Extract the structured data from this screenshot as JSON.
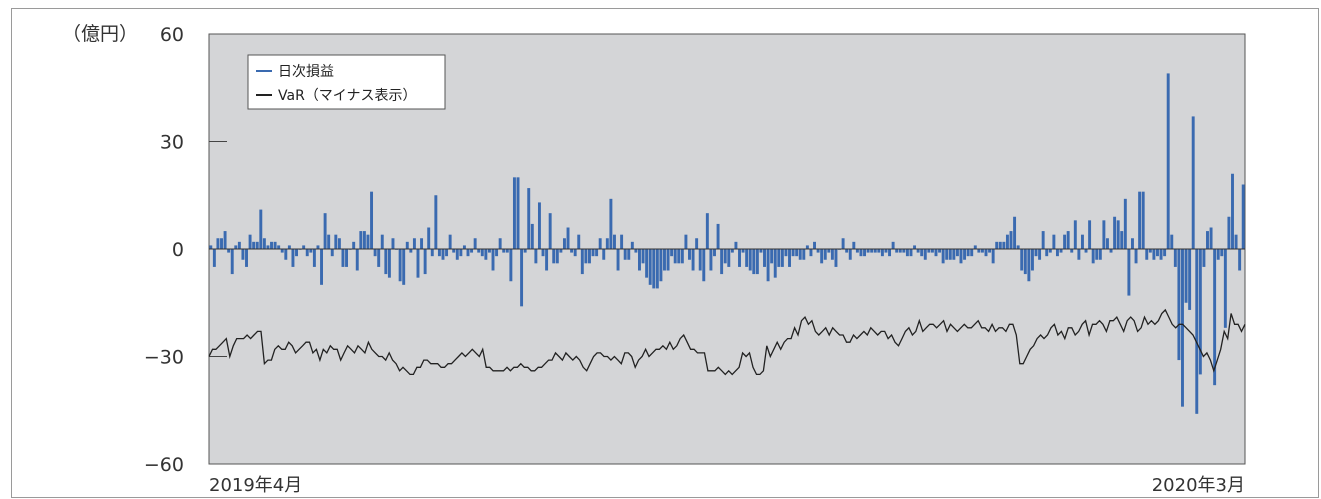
{
  "chart_data": {
    "type": "bar+line",
    "unit_label": "（億円）",
    "ylim": [
      -60,
      60
    ],
    "yticks": [
      60,
      30,
      0,
      -30,
      -60
    ],
    "ytick_labels": [
      "60",
      "30",
      "0",
      "−30",
      "−60"
    ],
    "x_start_label": "2019年4月",
    "x_end_label": "2020年3月",
    "colors": {
      "bar": "#3a6ab0",
      "line": "#222222",
      "plot_bg": "#d4d5d7"
    },
    "legend": {
      "position": "top-left",
      "entries": [
        "日次損益",
        "VaR（マイナス表示）"
      ]
    },
    "series": [
      {
        "name": "日次損益",
        "kind": "bar",
        "values": [
          1,
          -5,
          3,
          3,
          5,
          -1,
          -7,
          1,
          2,
          -3,
          -5,
          4,
          2,
          2,
          11,
          3,
          1,
          2,
          2,
          1,
          -1,
          -3,
          1,
          -5,
          -2,
          0,
          1,
          -2,
          -1,
          -5,
          1,
          -10,
          10,
          4,
          -2,
          4,
          3,
          -5,
          -5,
          0,
          2,
          -6,
          5,
          5,
          4,
          16,
          -2,
          -5,
          4,
          -7,
          -8,
          3,
          0,
          -9,
          -10,
          2,
          -1,
          3,
          -8,
          3,
          -7,
          6,
          -2,
          15,
          -2,
          -3,
          -2,
          4,
          -1,
          -3,
          -2,
          1,
          -2,
          -1,
          3,
          -1,
          -2,
          -3,
          -1,
          -6,
          -2,
          3,
          -1,
          -1,
          -9,
          20,
          20,
          -16,
          -1,
          17,
          7,
          -4,
          13,
          -2,
          -6,
          10,
          -4,
          -4,
          -1,
          3,
          6,
          -1,
          -2,
          4,
          -7,
          -4,
          -4,
          -2,
          -2,
          3,
          -3,
          3,
          14,
          4,
          -6,
          4,
          -3,
          -3,
          2,
          -1,
          -6,
          -4,
          -8,
          -10,
          -11,
          -11,
          -9,
          -6,
          -6,
          -2,
          -4,
          -4,
          -4,
          4,
          -3,
          -6,
          3,
          -6,
          -9,
          10,
          -6,
          -2,
          7,
          -7,
          -4,
          -5,
          -1,
          2,
          -5,
          -1,
          -5,
          -6,
          -7,
          -7,
          -1,
          -5,
          -9,
          -4,
          -8,
          -5,
          -5,
          -2,
          -5,
          -2,
          -2,
          -3,
          -3,
          1,
          -2,
          2,
          -1,
          -4,
          -3,
          -1,
          -3,
          -5,
          0,
          3,
          -1,
          -3,
          2,
          -1,
          -2,
          -2,
          -1,
          -1,
          -1,
          -1,
          -2,
          -1,
          -2,
          2,
          -1,
          -1,
          -1,
          -2,
          -2,
          1,
          -1,
          -2,
          -3,
          -1,
          -1,
          -2,
          -1,
          -4,
          -3,
          -3,
          -3,
          -2,
          -4,
          -3,
          -2,
          -2,
          1,
          -1,
          -1,
          -2,
          -1,
          -4,
          2,
          2,
          2,
          4,
          5,
          9,
          1,
          -6,
          -7,
          -9,
          -6,
          -2,
          -3,
          5,
          -2,
          -1,
          4,
          -2,
          -1,
          4,
          5,
          -1,
          8,
          -3,
          4,
          -1,
          8,
          -4,
          -3,
          -3,
          8,
          3,
          -1,
          9,
          8,
          5,
          14,
          -13,
          3,
          -4,
          16,
          16,
          -3,
          -1,
          -3,
          -2,
          -3,
          -2,
          49,
          4,
          -5,
          -31,
          -44,
          -15,
          -17,
          37,
          -46,
          -35,
          -5,
          5,
          6,
          -38,
          -3,
          -2,
          -22,
          9,
          21,
          4,
          -6,
          18
        ]
      },
      {
        "name": "VaR（マイナス表示）",
        "kind": "line",
        "values": [
          -30,
          -28,
          -28,
          -27,
          -26,
          -25,
          -30,
          -27,
          -25,
          -25,
          -25,
          -24,
          -25,
          -24,
          -23,
          -23,
          -32,
          -31,
          -31,
          -28,
          -27,
          -28,
          -28,
          -26,
          -27,
          -29,
          -28,
          -27,
          -26,
          -26,
          -29,
          -28,
          -31,
          -28,
          -29,
          -27,
          -28,
          -28,
          -31,
          -29,
          -27,
          -28,
          -29,
          -27,
          -28,
          -29,
          -26,
          -28,
          -29,
          -30,
          -30,
          -31,
          -29,
          -31,
          -32,
          -34,
          -33,
          -34,
          -35,
          -35,
          -33,
          -33,
          -31,
          -31,
          -32,
          -32,
          -32,
          -33,
          -33,
          -32,
          -32,
          -31,
          -30,
          -29,
          -30,
          -29,
          -28,
          -29,
          -30,
          -28,
          -33,
          -33,
          -34,
          -34,
          -34,
          -34,
          -33,
          -34,
          -33,
          -33,
          -32,
          -33,
          -33,
          -34,
          -34,
          -33,
          -33,
          -32,
          -31,
          -31,
          -29,
          -30,
          -31,
          -29,
          -30,
          -31,
          -30,
          -31,
          -33,
          -34,
          -32,
          -30,
          -29,
          -29,
          -30,
          -30,
          -31,
          -30,
          -31,
          -32,
          -29,
          -29,
          -30,
          -33,
          -31,
          -30,
          -28,
          -30,
          -29,
          -28,
          -28,
          -27,
          -28,
          -26,
          -28,
          -27,
          -25,
          -24,
          -26,
          -28,
          -28,
          -29,
          -29,
          -29,
          -34,
          -34,
          -34,
          -33,
          -34,
          -35,
          -34,
          -35,
          -34,
          -33,
          -29,
          -30,
          -29,
          -33,
          -35,
          -35,
          -34,
          -27,
          -30,
          -28,
          -26,
          -28,
          -26,
          -25,
          -25,
          -22,
          -24,
          -20,
          -19,
          -21,
          -20,
          -23,
          -24,
          -23,
          -22,
          -24,
          -22,
          -23,
          -24,
          -24,
          -26,
          -26,
          -24,
          -25,
          -24,
          -23,
          -24,
          -22,
          -23,
          -24,
          -23,
          -23,
          -25,
          -24,
          -26,
          -27,
          -25,
          -23,
          -22,
          -24,
          -23,
          -20,
          -23,
          -22,
          -21,
          -21,
          -22,
          -21,
          -20,
          -23,
          -21,
          -22,
          -23,
          -22,
          -21,
          -22,
          -22,
          -21,
          -20,
          -22,
          -22,
          -23,
          -21,
          -23,
          -22,
          -22,
          -23,
          -21,
          -21,
          -24,
          -32,
          -32,
          -30,
          -28,
          -27,
          -25,
          -24,
          -25,
          -24,
          -22,
          -21,
          -24,
          -23,
          -25,
          -22,
          -22,
          -24,
          -23,
          -21,
          -20,
          -24,
          -21,
          -21,
          -20,
          -21,
          -23,
          -20,
          -20,
          -19,
          -21,
          -23,
          -20,
          -19,
          -20,
          -23,
          -22,
          -19,
          -21,
          -20,
          -21,
          -20,
          -18,
          -17,
          -19,
          -21,
          -22,
          -21,
          -21,
          -22,
          -23,
          -24,
          -26,
          -28,
          -30,
          -29,
          -31,
          -34,
          -31,
          -28,
          -23,
          -25,
          -18,
          -21,
          -21,
          -23,
          -21
        ]
      }
    ]
  }
}
